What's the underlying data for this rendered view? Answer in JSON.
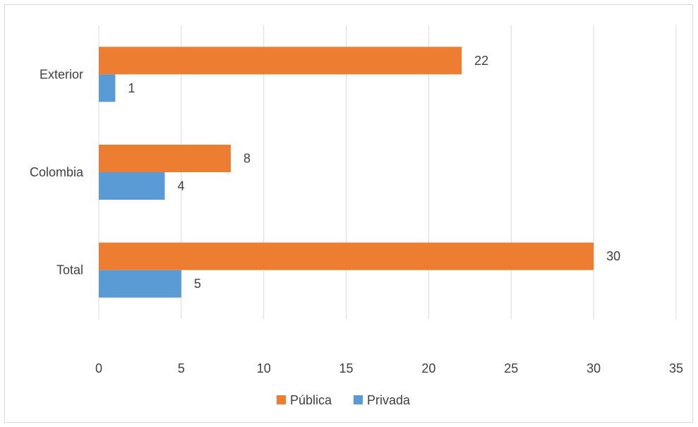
{
  "chart_data": {
    "type": "bar",
    "orientation": "horizontal",
    "categories": [
      "Exterior",
      "Colombia",
      "Total"
    ],
    "series": [
      {
        "name": "Pública",
        "values": [
          22,
          8,
          30
        ],
        "color": "#ED7D31"
      },
      {
        "name": "Privada",
        "values": [
          1,
          4,
          5
        ],
        "color": "#5B9BD5"
      }
    ],
    "x_ticks": [
      "0",
      "5",
      "10",
      "15",
      "20",
      "25",
      "30",
      "35"
    ],
    "xlim": [
      0,
      35
    ],
    "grid": true,
    "legend_position": "bottom",
    "title": "",
    "xlabel": "",
    "ylabel": ""
  }
}
